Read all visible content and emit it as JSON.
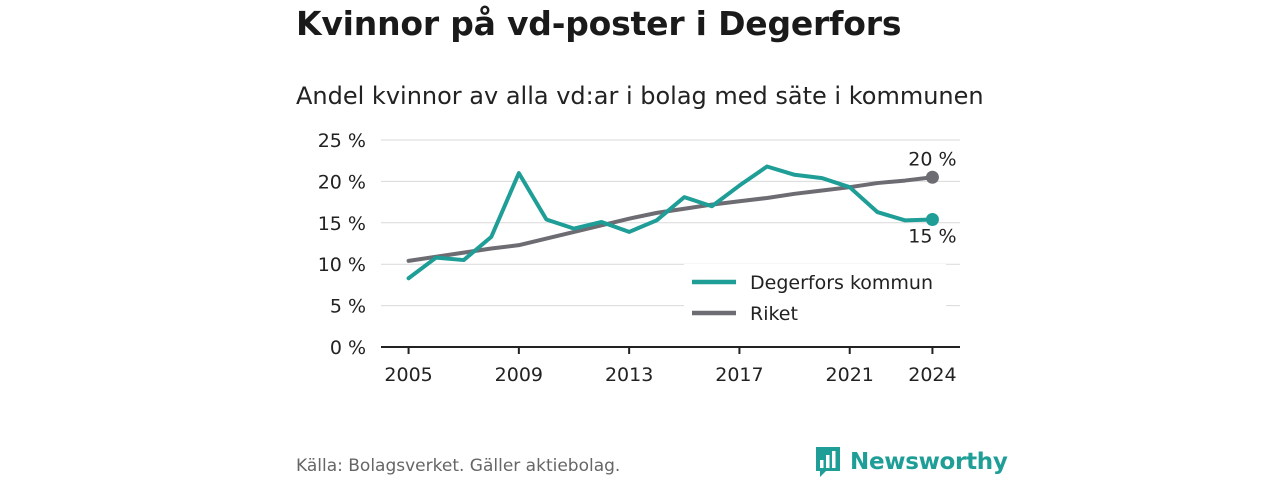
{
  "header": {
    "title": "Kvinnor på vd-poster i Degerfors",
    "subtitle": "Andel kvinnor av alla vd:ar i bolag med säte i kommunen"
  },
  "footer": {
    "source": "Källa: Bolagsverket. Gäller aktiebolag.",
    "brand": "Newsworthy",
    "brand_icon": "bar-chart-speech-bubble-icon"
  },
  "colors": {
    "degerfors": "#1f9e98",
    "riket": "#6e6c73",
    "brand": "#1f9e98"
  },
  "chart_data": {
    "type": "line",
    "title": "Andel kvinnor av alla vd:ar i bolag med säte i kommunen",
    "xlabel": "",
    "ylabel": "",
    "x": [
      2005,
      2006,
      2007,
      2008,
      2009,
      2010,
      2011,
      2012,
      2013,
      2014,
      2015,
      2016,
      2017,
      2018,
      2019,
      2020,
      2021,
      2022,
      2023,
      2024
    ],
    "x_ticks": [
      2005,
      2009,
      2013,
      2017,
      2021,
      2024
    ],
    "x_tick_labels": [
      "2005",
      "2009",
      "2013",
      "2017",
      "2021",
      "2024"
    ],
    "ylim": [
      0,
      25
    ],
    "y_ticks": [
      0,
      5,
      10,
      15,
      20,
      25
    ],
    "y_tick_labels": [
      "0 %",
      "5 %",
      "10 %",
      "15 %",
      "20 %",
      "25 %"
    ],
    "grid": true,
    "legend_position": "bottom-right",
    "series": [
      {
        "name": "Degerfors kommun",
        "color": "#1f9e98",
        "values": [
          8.3,
          10.8,
          10.5,
          13.3,
          21.0,
          15.4,
          14.3,
          15.1,
          13.9,
          15.3,
          18.1,
          17.0,
          19.5,
          21.8,
          20.8,
          20.4,
          19.3,
          16.3,
          15.3,
          15.4
        ],
        "end_label": "15 %"
      },
      {
        "name": "Riket",
        "color": "#6e6c73",
        "values": [
          10.4,
          10.9,
          11.4,
          11.9,
          12.3,
          13.1,
          13.9,
          14.7,
          15.5,
          16.2,
          16.7,
          17.2,
          17.6,
          18.0,
          18.5,
          18.9,
          19.3,
          19.8,
          20.1,
          20.5
        ],
        "end_label": "20 %"
      }
    ]
  }
}
